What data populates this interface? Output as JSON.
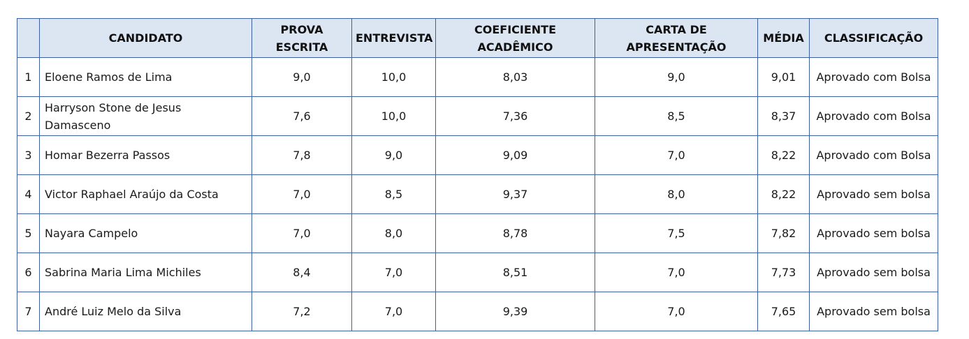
{
  "headers": {
    "index": "",
    "candidato": "CANDIDATO",
    "prova_escrita": "PROVA ESCRITA",
    "entrevista": "ENTREVISTA",
    "coeficiente": "COEFICIENTE ACADÊMICO",
    "carta": "CARTA DE APRESENTAÇÃO",
    "media": "MÉDIA",
    "classificacao": "CLASSIFICAÇÃO"
  },
  "rows": [
    {
      "index": "1",
      "candidato": "Eloene Ramos de Lima",
      "prova_escrita": "9,0",
      "entrevista": "10,0",
      "coeficiente": "8,03",
      "carta": "9,0",
      "media": "9,01",
      "classificacao": "Aprovado com Bolsa"
    },
    {
      "index": "2",
      "candidato": "Harryson Stone de Jesus Damasceno",
      "prova_escrita": "7,6",
      "entrevista": "10,0",
      "coeficiente": "7,36",
      "carta": "8,5",
      "media": "8,37",
      "classificacao": "Aprovado com Bolsa"
    },
    {
      "index": "3",
      "candidato": "Homar Bezerra Passos",
      "prova_escrita": "7,8",
      "entrevista": "9,0",
      "coeficiente": "9,09",
      "carta": "7,0",
      "media": "8,22",
      "classificacao": "Aprovado com Bolsa"
    },
    {
      "index": "4",
      "candidato": "Victor Raphael Araújo da Costa",
      "prova_escrita": "7,0",
      "entrevista": "8,5",
      "coeficiente": "9,37",
      "carta": "8,0",
      "media": "8,22",
      "classificacao": "Aprovado sem bolsa"
    },
    {
      "index": "5",
      "candidato": "Nayara Campelo",
      "prova_escrita": "7,0",
      "entrevista": "8,0",
      "coeficiente": "8,78",
      "carta": "7,5",
      "media": "7,82",
      "classificacao": "Aprovado sem bolsa"
    },
    {
      "index": "6",
      "candidato": "Sabrina Maria Lima Michiles",
      "prova_escrita": "8,4",
      "entrevista": "7,0",
      "coeficiente": "8,51",
      "carta": "7,0",
      "media": "7,73",
      "classificacao": "Aprovado sem bolsa"
    },
    {
      "index": "7",
      "candidato": "André Luiz Melo da Silva",
      "prova_escrita": "7,2",
      "entrevista": "7,0",
      "coeficiente": "9,39",
      "carta": "7,0",
      "media": "7,65",
      "classificacao": "Aprovado sem bolsa"
    }
  ],
  "colors": {
    "border": "#3f5fa3",
    "header_background": "#dce5f2"
  }
}
